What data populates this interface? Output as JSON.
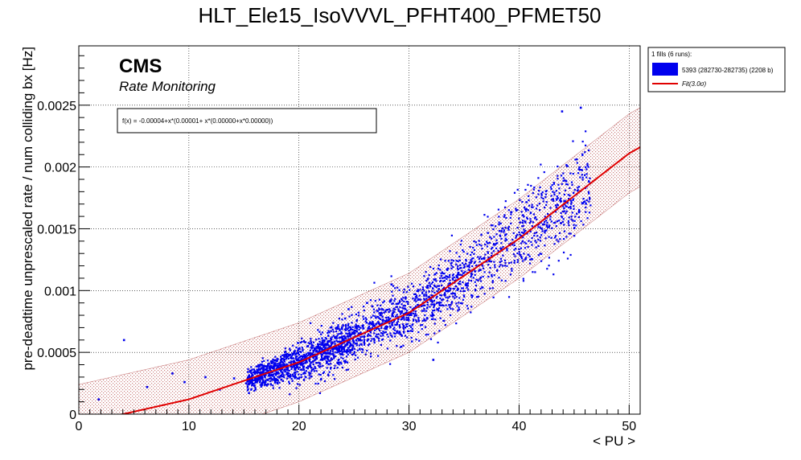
{
  "chart_data": {
    "type": "scatter",
    "title": "HLT_Ele15_IsoVVVL_PFHT400_PFMET50",
    "xlabel": "< PU >",
    "ylabel": "pre-deadtime unprescaled rate / num colliding bx [Hz]",
    "xlim": [
      0,
      51
    ],
    "ylim": [
      0,
      0.00298
    ],
    "x_ticks": [
      0,
      10,
      20,
      30,
      40,
      50
    ],
    "y_ticks": [
      0,
      0.0005,
      0.001,
      0.0015,
      0.002,
      0.0025
    ],
    "y_tick_labels": [
      "0",
      "0.0005",
      "0.001",
      "0.0015",
      "0.002",
      "0.0025"
    ],
    "grid": true,
    "cms_label": "CMS",
    "cms_sublabel": "Rate Monitoring",
    "fit_formula_text": "f(x) = -0.00004+x*(0.00001+ x*(0.00000+x*0.00000))",
    "fit": {
      "name": "Fit(3.0σ)",
      "sigma": 3.0,
      "band_halfwidth": 0.00032,
      "color": "#e00000",
      "band_color": "#a01818",
      "anchor_points": [
        [
          4,
          0.0
        ],
        [
          10,
          0.00012
        ],
        [
          20,
          0.00042
        ],
        [
          30,
          0.00082
        ],
        [
          40,
          0.00142
        ],
        [
          50,
          0.00211
        ],
        [
          51,
          0.00216
        ]
      ]
    },
    "series": [
      {
        "name": "5393 (282730-282735) (2208 b)",
        "color": "#0000ee",
        "description": "main dense cluster spans <PU> 15.3 to 46.5, following the fit curve",
        "isolated_points": [
          [
            1.8,
            0.00012
          ],
          [
            4.1,
            0.0006
          ],
          [
            6.2,
            0.00022
          ],
          [
            8.5,
            0.00033
          ],
          [
            9.6,
            0.00026
          ],
          [
            11.5,
            0.0003
          ],
          [
            12.8,
            0.0002
          ],
          [
            14.1,
            0.00029
          ],
          [
            15.2,
            0.00025
          ],
          [
            24.5,
            0.00085
          ],
          [
            28.4,
            0.00105
          ],
          [
            32.2,
            0.00044
          ],
          [
            43.9,
            0.00245
          ],
          [
            45.6,
            0.00248
          ]
        ]
      }
    ],
    "legend": {
      "header": "1 fills (6 runs):",
      "entries": [
        "5393 (282730-282735) (2208 b)",
        "Fit(3.0σ)"
      ],
      "placement": "top-right outside"
    }
  }
}
